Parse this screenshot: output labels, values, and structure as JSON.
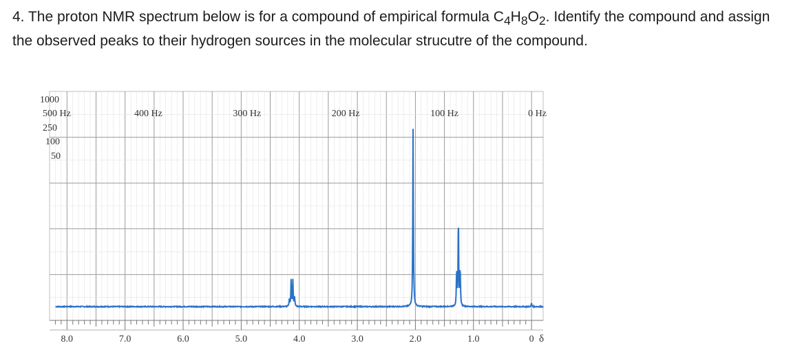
{
  "question": {
    "number": "4.",
    "line1": "The proton NMR spectrum below is for a compound of empirical formula C",
    "sub_4": "4",
    "h": "H",
    "sub_8": "8",
    "o": "O",
    "sub_2": "2",
    "line1_end": ".  Identify the compound and assign",
    "line2": "the observed peaks to their hydrogen sources in the molecular strucutre of the compound."
  },
  "chart_data": {
    "type": "line",
    "x_unit": "ppm",
    "x_axis_label": "δ",
    "x_range": [
      8.3,
      -0.2
    ],
    "x_ticks": [
      "8.0",
      "7.0",
      "6.0",
      "5.0",
      "4.0",
      "3.0",
      "2.0",
      "1.0",
      "0"
    ],
    "x_tick_values": [
      8.0,
      7.0,
      6.0,
      5.0,
      4.0,
      3.0,
      2.0,
      1.0,
      0.0
    ],
    "hz_labels": [
      "400 Hz",
      "300 Hz",
      "200 Hz",
      "100 Hz",
      "0 Hz"
    ],
    "hz_label_ppm": [
      6.6,
      4.9,
      3.2,
      1.5,
      -0.1
    ],
    "sweep_labels": [
      "1000",
      "500 Hz",
      "250",
      "100",
      "50"
    ],
    "intensity_range": [
      0,
      100
    ],
    "peaks": [
      {
        "group": "quartet",
        "ppm": [
          4.17,
          4.14,
          4.11,
          4.08
        ],
        "intensity": [
          4,
          15,
          15,
          5
        ]
      },
      {
        "group": "singlet",
        "ppm": [
          2.04
        ],
        "intensity": [
          100
        ]
      },
      {
        "group": "triplet",
        "ppm": [
          1.29,
          1.26,
          1.23
        ],
        "intensity": [
          20,
          52,
          22
        ]
      },
      {
        "group": "reference",
        "ppm": [
          0.0
        ],
        "intensity": [
          2
        ]
      }
    ],
    "line_color": "#2a72c8",
    "grid_color": "#bfbfbf"
  }
}
